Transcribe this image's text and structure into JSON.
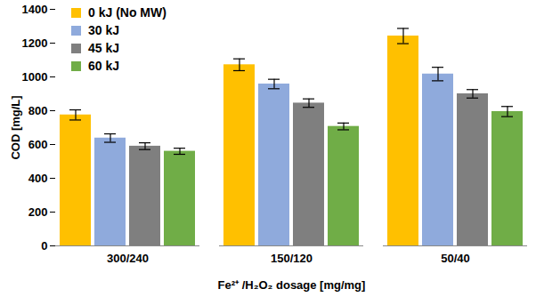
{
  "chart_data": {
    "type": "bar",
    "x_label": "Fe²⁺ /H₂O₂ dosage [mg/mg]",
    "y_label": "COD [mg/L]",
    "categories": [
      "300/240",
      "150/120",
      "50/40"
    ],
    "series": [
      {
        "name": "0 kJ (No MW)",
        "color": "#FFC000",
        "values": [
          775,
          1072,
          1242
        ],
        "errors": [
          30,
          35,
          45
        ]
      },
      {
        "name": "30 kJ",
        "color": "#8FAADC",
        "values": [
          638,
          958,
          1017
        ],
        "errors": [
          25,
          28,
          40
        ]
      },
      {
        "name": "45 kJ",
        "color": "#7F7F7F",
        "values": [
          590,
          845,
          900
        ],
        "errors": [
          20,
          25,
          25
        ]
      },
      {
        "name": "60 kJ",
        "color": "#70AD47",
        "values": [
          560,
          707,
          795
        ],
        "errors": [
          18,
          20,
          30
        ]
      }
    ],
    "ylim": [
      0,
      1400
    ],
    "yticks": [
      0,
      200,
      400,
      600,
      800,
      1000,
      1200,
      1400
    ],
    "grid": false,
    "legend": "top-left"
  }
}
